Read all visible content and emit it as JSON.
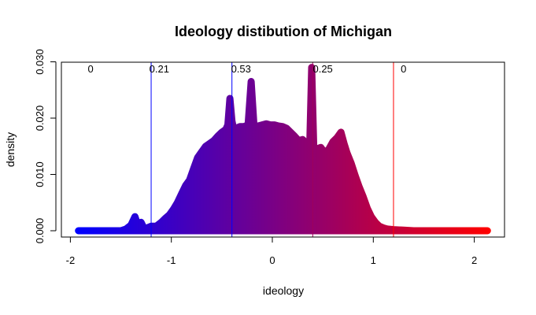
{
  "chart_data": {
    "type": "area",
    "title": "Ideology distibution of Michigan",
    "xlabel": "ideology",
    "ylabel": "density",
    "xlim": [
      -2,
      2.2
    ],
    "ylim": [
      0,
      0.03
    ],
    "x_ticks": [
      -2,
      -1,
      0,
      1,
      2
    ],
    "x_tick_labels": [
      "-2",
      "-1",
      "0",
      "1",
      "2"
    ],
    "y_ticks": [
      0.0,
      0.01,
      0.02,
      0.03
    ],
    "y_tick_labels": [
      "0.000",
      "0.010",
      "0.020",
      "0.030"
    ],
    "grid": false,
    "color_gradient": [
      "#0000ff",
      "#ff0000"
    ],
    "series": [
      {
        "x": [
          -1.92,
          -1.8,
          -1.7,
          -1.6,
          -1.5,
          -1.45,
          -1.4,
          -1.36,
          -1.33,
          -1.3,
          -1.27,
          -1.24,
          -1.2,
          -1.15,
          -1.1,
          -1.06,
          -1.02,
          -0.98,
          -0.94,
          -0.9,
          -0.86,
          -0.82,
          -0.78,
          -0.74,
          -0.7,
          -0.66,
          -0.62,
          -0.58,
          -0.54,
          -0.5,
          -0.46,
          -0.44,
          -0.42,
          -0.4,
          -0.38,
          -0.36,
          -0.32,
          -0.28,
          -0.24,
          -0.21,
          -0.18,
          -0.14,
          -0.1,
          -0.06,
          -0.02,
          0.02,
          0.06,
          0.1,
          0.14,
          0.18,
          0.22,
          0.26,
          0.3,
          0.34,
          0.37,
          0.39,
          0.41,
          0.44,
          0.48,
          0.52,
          0.56,
          0.6,
          0.64,
          0.68,
          0.71,
          0.74,
          0.78,
          0.82,
          0.86,
          0.9,
          0.94,
          0.98,
          1.02,
          1.06,
          1.1,
          1.14,
          1.2,
          1.3,
          1.4,
          1.5,
          1.6,
          1.7,
          1.8,
          1.9,
          2.0,
          2.1,
          2.13
        ],
        "values": [
          0.0,
          0.0,
          0.0,
          0.0,
          0.0,
          0.0003,
          0.001,
          0.0025,
          0.0008,
          0.0015,
          0.0004,
          0.0005,
          0.0008,
          0.0008,
          0.0015,
          0.0022,
          0.0028,
          0.0038,
          0.005,
          0.0065,
          0.008,
          0.009,
          0.011,
          0.013,
          0.014,
          0.015,
          0.0155,
          0.016,
          0.0168,
          0.0175,
          0.018,
          0.0188,
          0.0235,
          0.0195,
          0.0178,
          0.0182,
          0.0185,
          0.0185,
          0.0188,
          0.0265,
          0.0182,
          0.0186,
          0.0188,
          0.019,
          0.0188,
          0.0188,
          0.0186,
          0.0185,
          0.0182,
          0.0175,
          0.0168,
          0.016,
          0.0162,
          0.0155,
          0.015,
          0.029,
          0.015,
          0.0145,
          0.0148,
          0.0138,
          0.0145,
          0.0158,
          0.0165,
          0.0175,
          0.0155,
          0.0138,
          0.012,
          0.0098,
          0.0078,
          0.006,
          0.004,
          0.0025,
          0.0015,
          0.0008,
          0.0005,
          0.0003,
          0.0002,
          0.0001,
          0.0,
          0.0,
          0.0,
          0.0,
          0.0,
          0.0,
          0.0,
          0.0,
          0.0
        ]
      }
    ],
    "vlines": [
      {
        "x": -1.2,
        "color": "#0000ff",
        "label": "0.21"
      },
      {
        "x": -0.4,
        "color": "#0000ff",
        "label": "0.53"
      },
      {
        "x": 0.4,
        "color": "#a0005a",
        "label": "0.25"
      },
      {
        "x": 1.2,
        "color": "#ff0000",
        "label": "0"
      }
    ],
    "region_labels": [
      {
        "x": -1.8,
        "label": "0"
      },
      {
        "x": -1.12,
        "label": "0.21"
      },
      {
        "x": -0.31,
        "label": "0.53"
      },
      {
        "x": 0.5,
        "label": "0.25"
      },
      {
        "x": 1.3,
        "label": "0"
      }
    ]
  }
}
